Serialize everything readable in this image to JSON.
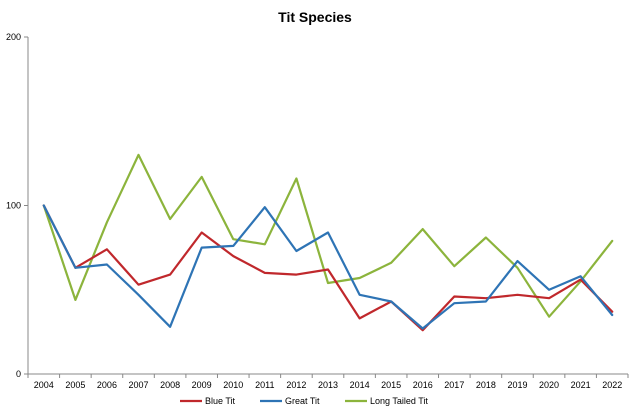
{
  "chart_data": {
    "type": "line",
    "title": "Tit Species",
    "xlabel": "",
    "ylabel": "",
    "x": [
      "2004",
      "2005",
      "2006",
      "2007",
      "2008",
      "2009",
      "2010",
      "2011",
      "2012",
      "2013",
      "2014",
      "2015",
      "2016",
      "2017",
      "2018",
      "2019",
      "2020",
      "2021",
      "2022"
    ],
    "ylim": [
      0,
      200
    ],
    "yticks": [
      0,
      100,
      200
    ],
    "grid": false,
    "legend_position": "bottom",
    "series": [
      {
        "name": "Blue Tit",
        "color": "#c0282c",
        "values": [
          100,
          63,
          74,
          53,
          59,
          84,
          70,
          60,
          59,
          62,
          33,
          43,
          26,
          46,
          45,
          47,
          45,
          56,
          37
        ]
      },
      {
        "name": "Great Tit",
        "color": "#2e74b5",
        "values": [
          100,
          63,
          65,
          47,
          28,
          75,
          76,
          99,
          73,
          84,
          47,
          43,
          27,
          42,
          43,
          67,
          50,
          58,
          35
        ]
      },
      {
        "name": "Long Tailed Tit",
        "color": "#8cb43c",
        "values": [
          100,
          44,
          90,
          130,
          92,
          117,
          80,
          77,
          116,
          54,
          57,
          66,
          86,
          64,
          81,
          63,
          34,
          55,
          79
        ]
      }
    ]
  }
}
